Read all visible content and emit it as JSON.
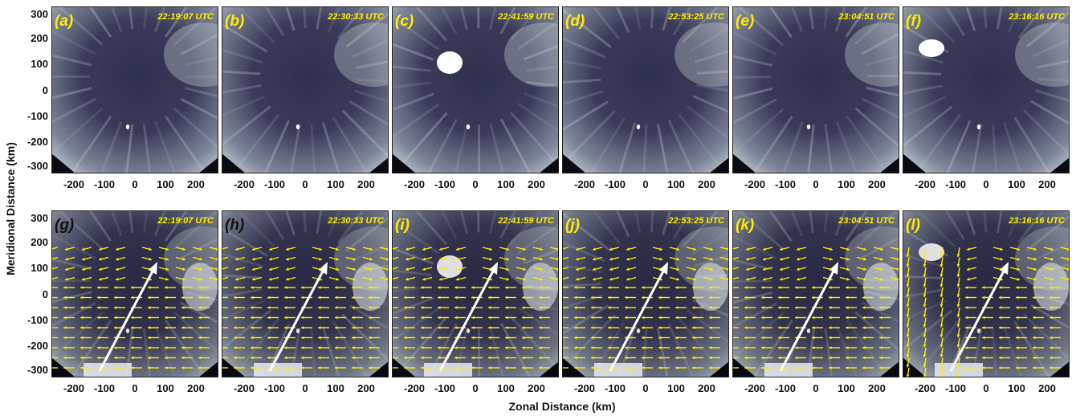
{
  "figure": {
    "ylabel": "Meridional Distance (km)",
    "xlabel": "Zonal Distance (km)",
    "x_ticks": [
      "-200",
      "-100",
      "0",
      "100",
      "200"
    ],
    "y_ticks": [
      "300",
      "200",
      "100",
      "0",
      "-100",
      "-200",
      "-300"
    ],
    "colors": {
      "label_yellow": "#ffee00",
      "vector_yellow": "#ffee00",
      "arrow_white": "#ffffff",
      "image_dark": "#3a3a58",
      "image_light": "#c8d4d6"
    }
  },
  "panels_top": [
    {
      "letter": "(a)",
      "time": "22:19:07 UTC"
    },
    {
      "letter": "(b)",
      "time": "22:30:33 UTC"
    },
    {
      "letter": "(c)",
      "time": "22:41:59 UTC"
    },
    {
      "letter": "(d)",
      "time": "22:53:25 UTC"
    },
    {
      "letter": "(e)",
      "time": "23:04:51 UTC"
    },
    {
      "letter": "(f)",
      "time": "23:16:16 UTC"
    }
  ],
  "panels_bottom": [
    {
      "letter": "(g)",
      "time": "22:19:07 UTC"
    },
    {
      "letter": "(h)",
      "time": "22:30:33 UTC"
    },
    {
      "letter": "(i)",
      "time": "22:41:59 UTC"
    },
    {
      "letter": "(j)",
      "time": "22:53:25 UTC"
    },
    {
      "letter": "(k)",
      "time": "23:04:51 UTC"
    },
    {
      "letter": "(l)",
      "time": "23:16:16 UTC"
    }
  ]
}
